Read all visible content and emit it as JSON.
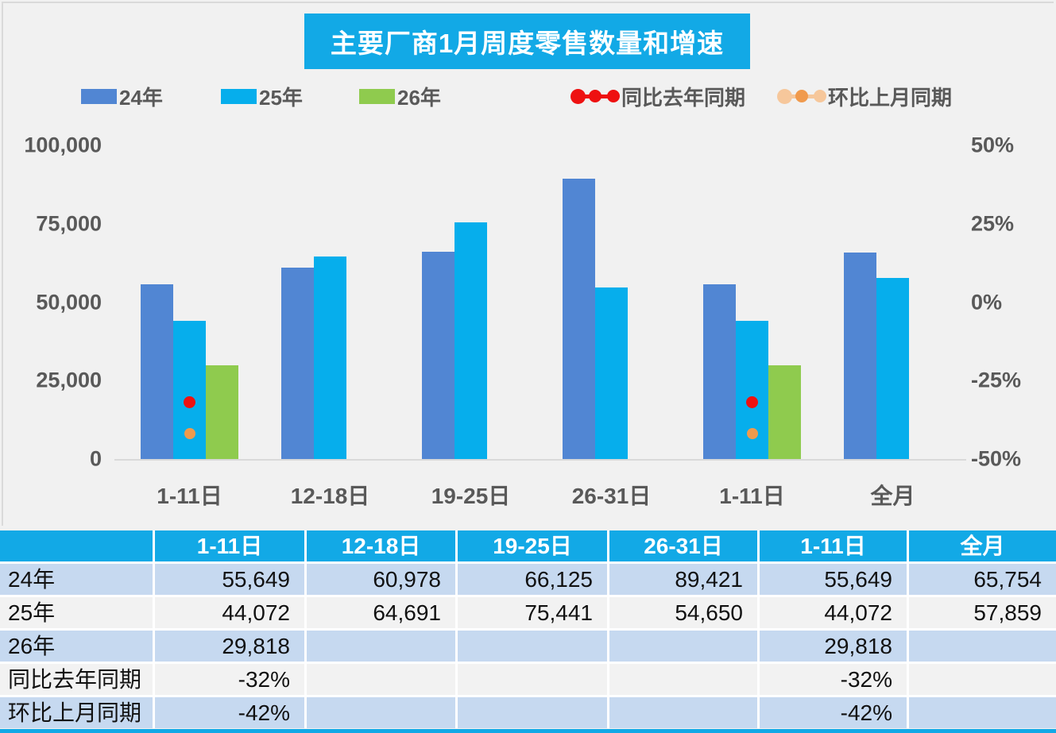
{
  "title": "主要厂商1月周度零售数量和增速",
  "colors": {
    "accent_cyan": "#12A9E6",
    "bar_blue": "#5186D3",
    "bar_cyan": "#06AEEC",
    "bar_green": "#8FCB4E",
    "dot_red": "#EE1111",
    "dot_orange": "#F09A4D",
    "orange_light": "#F6C79B",
    "row_blue": "#C6D9F0",
    "row_gray": "#F2F2F2",
    "axis_text": "#595959",
    "baseline_gray": "#D9D9D9"
  },
  "chart_data": {
    "type": "bar",
    "title": "主要厂商1月周度零售数量和增速",
    "legend_position": "top",
    "grid": false,
    "categories": [
      "1-11日",
      "12-18日",
      "19-25日",
      "26-31日",
      "1-11日",
      "全月"
    ],
    "series": [
      {
        "name": "24年",
        "type": "bar",
        "axis": "left",
        "color": "#5186D3",
        "values": [
          55649,
          60978,
          66125,
          89421,
          55649,
          65754
        ]
      },
      {
        "name": "25年",
        "type": "bar",
        "axis": "left",
        "color": "#06AEEC",
        "values": [
          44072,
          64691,
          75441,
          54650,
          44072,
          57859
        ]
      },
      {
        "name": "26年",
        "type": "bar",
        "axis": "left",
        "color": "#8FCB4E",
        "values": [
          29818,
          null,
          null,
          null,
          29818,
          null
        ]
      },
      {
        "name": "同比去年同期",
        "type": "point",
        "axis": "right",
        "color": "#EE1111",
        "marker_size": 15,
        "legend_marker": {
          "line": "#EE1111",
          "dots": [
            "#EE1111",
            "#EE1111",
            "#EE1111"
          ]
        },
        "values": [
          -32,
          null,
          null,
          null,
          -32,
          null
        ]
      },
      {
        "name": "环比上月同期",
        "type": "point",
        "axis": "right",
        "color": "#F09A4D",
        "marker_size": 14,
        "legend_marker": {
          "line": "#F6C79B",
          "dots": [
            "#F6C79B",
            "#F09A4D",
            "#F6C79B"
          ]
        },
        "values": [
          -42,
          null,
          null,
          null,
          -42,
          null
        ]
      }
    ],
    "left_axis": {
      "min": 0,
      "max": 100000,
      "ticks": [
        "100,000",
        "75,000",
        "50,000",
        "25,000",
        "0"
      ]
    },
    "right_axis": {
      "min": -50,
      "max": 50,
      "ticks": [
        "50%",
        "25%",
        "0%",
        "-25%",
        "-50%"
      ]
    }
  },
  "table": {
    "header": [
      "",
      "1-11日",
      "12-18日",
      "19-25日",
      "26-31日",
      "1-11日",
      "全月"
    ],
    "rows": [
      {
        "label": "24年",
        "values": [
          "55,649",
          "60,978",
          "66,125",
          "89,421",
          "55,649",
          "65,754"
        ]
      },
      {
        "label": "25年",
        "values": [
          "44,072",
          "64,691",
          "75,441",
          "54,650",
          "44,072",
          "57,859"
        ]
      },
      {
        "label": "26年",
        "values": [
          "29,818",
          "",
          "",
          "",
          "29,818",
          ""
        ]
      },
      {
        "label": "同比去年同期",
        "values": [
          "-32%",
          "",
          "",
          "",
          "-32%",
          ""
        ]
      },
      {
        "label": "环比上月同期",
        "values": [
          "-42%",
          "",
          "",
          "",
          "-42%",
          ""
        ]
      }
    ]
  }
}
